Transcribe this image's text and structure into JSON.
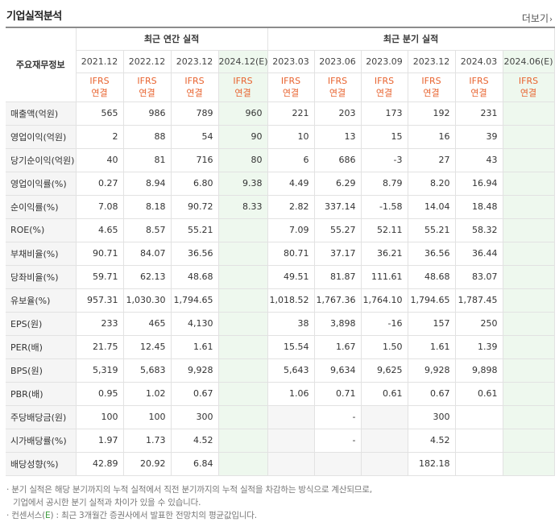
{
  "header": {
    "title": "기업실적분석",
    "more_label": "더보기"
  },
  "table": {
    "corner_label": "주요재무정보",
    "groups": {
      "annual": "최근 연간 실적",
      "quarter": "최근 분기 실적"
    },
    "periods": [
      "2021.12",
      "2022.12",
      "2023.12",
      "2024.12(E)",
      "2023.03",
      "2023.06",
      "2023.09",
      "2023.12",
      "2024.03",
      "2024.06(E)"
    ],
    "ifrs_line1": "IFRS",
    "ifrs_line2": "연결",
    "rows": [
      {
        "label": "매출액(억원)",
        "values": [
          "565",
          "986",
          "789",
          "960",
          "221",
          "203",
          "173",
          "192",
          "231",
          ""
        ]
      },
      {
        "label": "영업이익(억원)",
        "values": [
          "2",
          "88",
          "54",
          "90",
          "10",
          "13",
          "15",
          "16",
          "39",
          ""
        ]
      },
      {
        "label": "당기순이익(억원)",
        "values": [
          "40",
          "81",
          "716",
          "80",
          "6",
          "686",
          "-3",
          "27",
          "43",
          ""
        ]
      },
      {
        "label": "영업이익률(%)",
        "values": [
          "0.27",
          "8.94",
          "6.80",
          "9.38",
          "4.49",
          "6.29",
          "8.79",
          "8.20",
          "16.94",
          ""
        ]
      },
      {
        "label": "순이익률(%)",
        "values": [
          "7.08",
          "8.18",
          "90.72",
          "8.33",
          "2.82",
          "337.14",
          "-1.58",
          "14.04",
          "18.48",
          ""
        ]
      },
      {
        "label": "ROE(%)",
        "values": [
          "4.65",
          "8.57",
          "55.21",
          "",
          "7.09",
          "55.27",
          "52.11",
          "55.21",
          "58.32",
          ""
        ]
      },
      {
        "label": "부채비율(%)",
        "values": [
          "90.71",
          "84.07",
          "36.56",
          "",
          "80.71",
          "37.17",
          "36.21",
          "36.56",
          "36.44",
          ""
        ]
      },
      {
        "label": "당좌비율(%)",
        "values": [
          "59.71",
          "62.13",
          "48.68",
          "",
          "49.51",
          "81.87",
          "111.61",
          "48.68",
          "83.07",
          ""
        ]
      },
      {
        "label": "유보율(%)",
        "values": [
          "957.31",
          "1,030.30",
          "1,794.65",
          "",
          "1,018.52",
          "1,767.36",
          "1,764.10",
          "1,794.65",
          "1,787.45",
          ""
        ]
      },
      {
        "label": "EPS(원)",
        "values": [
          "233",
          "465",
          "4,130",
          "",
          "38",
          "3,898",
          "-16",
          "157",
          "250",
          ""
        ]
      },
      {
        "label": "PER(배)",
        "values": [
          "21.75",
          "12.45",
          "1.61",
          "",
          "15.54",
          "1.67",
          "1.50",
          "1.61",
          "1.39",
          ""
        ]
      },
      {
        "label": "BPS(원)",
        "values": [
          "5,319",
          "5,683",
          "9,928",
          "",
          "5,643",
          "9,634",
          "9,625",
          "9,928",
          "9,898",
          ""
        ]
      },
      {
        "label": "PBR(배)",
        "values": [
          "0.95",
          "1.02",
          "0.67",
          "",
          "1.06",
          "0.71",
          "0.61",
          "0.67",
          "0.61",
          ""
        ]
      },
      {
        "label": "주당배당금(원)",
        "values": [
          "100",
          "100",
          "300",
          "",
          "",
          "-",
          "",
          "300",
          "",
          ""
        ]
      },
      {
        "label": "시가배당률(%)",
        "values": [
          "1.97",
          "1.73",
          "4.52",
          "",
          "",
          "-",
          "",
          "4.52",
          "",
          ""
        ]
      },
      {
        "label": "배당성향(%)",
        "values": [
          "42.89",
          "20.92",
          "6.84",
          "",
          "",
          "",
          "",
          "182.18",
          "",
          ""
        ]
      }
    ]
  },
  "notes": {
    "line1": "분기 실적은 해당 분기까지의 누적 실적에서 직전 분기까지의 누적 실적을 차감하는 방식으로 계산되므로,",
    "line2": "기업에서 공시한 분기 실적과 차이가 있을 수 있습니다.",
    "line3_prefix": "컨센서스(",
    "line3_e": "E",
    "line3_suffix": ") : 최근 3개월간 증권사에서 발표한 전망치의 평균값입니다."
  },
  "colors": {
    "ifrs": "#e8632f",
    "negative": "#e02020",
    "estimate_bg": "#eef8ee",
    "empty_bg": "#f6f6f6"
  }
}
